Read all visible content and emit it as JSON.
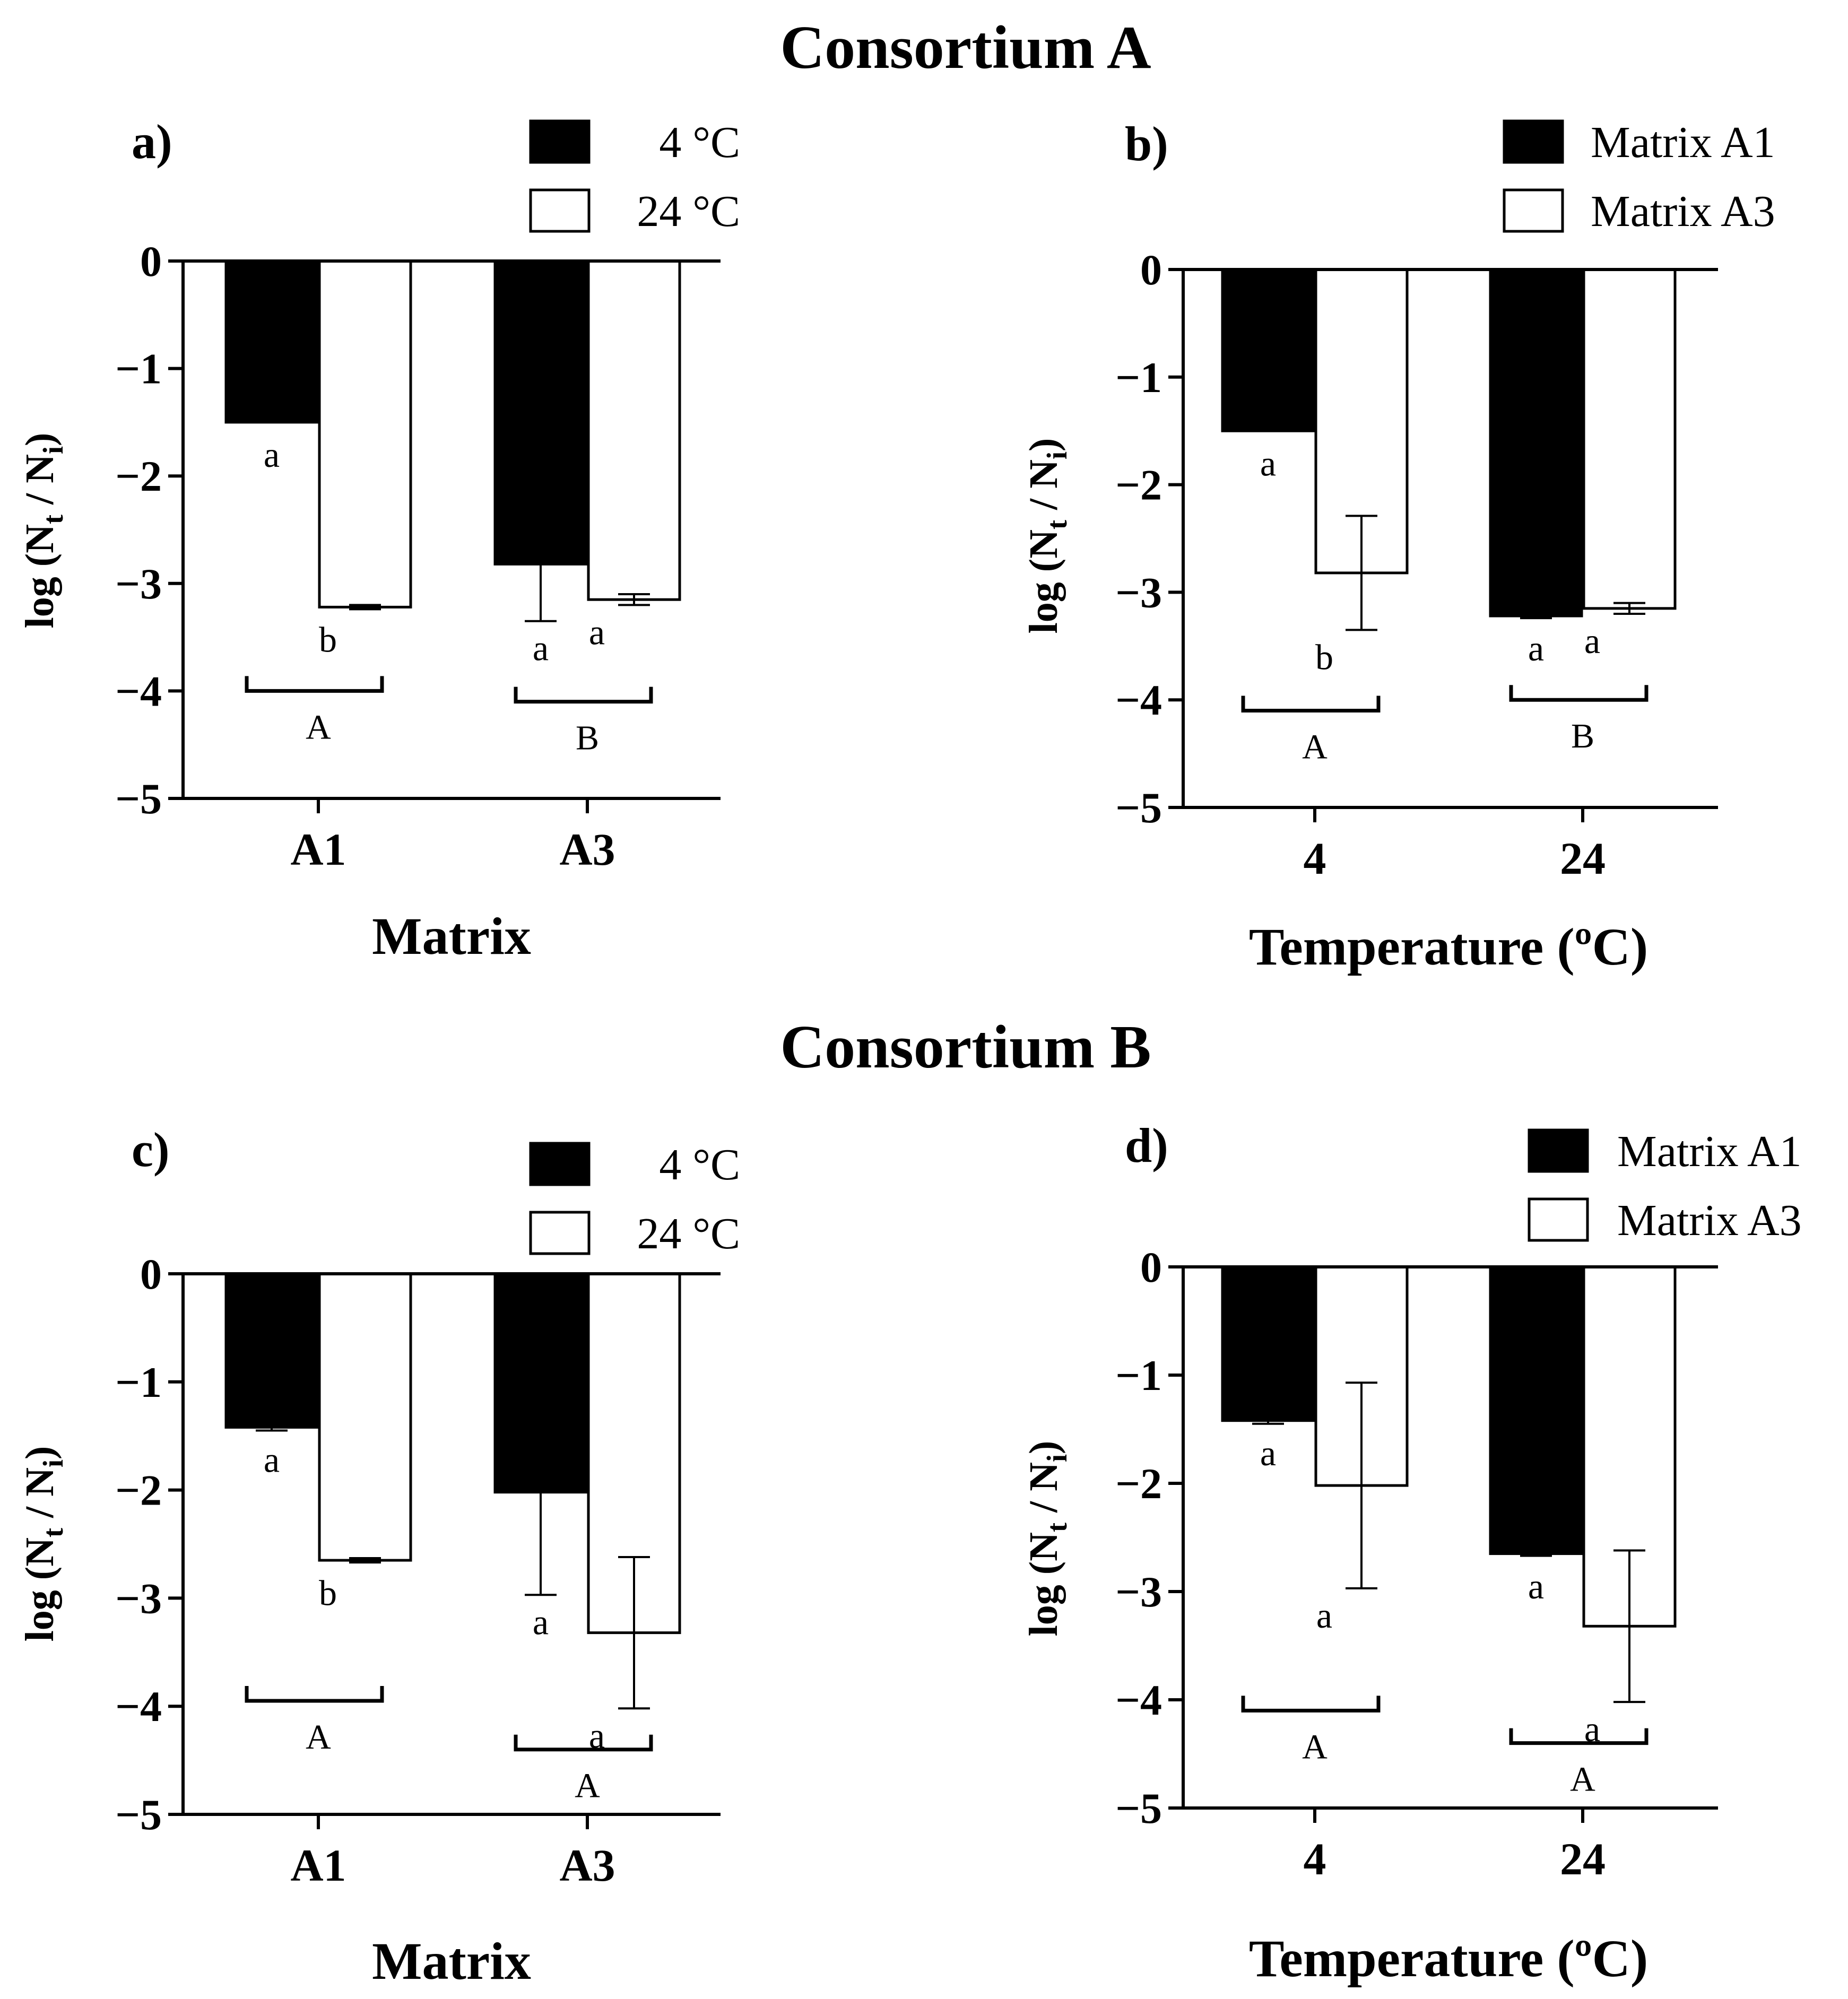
{
  "sections": [
    {
      "title": "Consortium A"
    },
    {
      "title": "Consortium B"
    }
  ],
  "chart_data": [
    {
      "panel": "a)",
      "type": "bar",
      "xlabel": "Matrix",
      "ylabel": "log (N_t / N_i)",
      "ylabel_main_1": "log (N",
      "ylabel_sub_1": "t",
      "ylabel_main_2": " / N",
      "ylabel_sub_2": "i",
      "ylabel_main_3": ")",
      "ylim": [
        -5,
        0
      ],
      "yticks": [
        0,
        -1,
        -2,
        -3,
        -4,
        -5
      ],
      "ytick_labels": [
        "0",
        "−1",
        "−2",
        "−3",
        "−4",
        "−5"
      ],
      "categories": [
        "A1",
        "A3"
      ],
      "series": [
        {
          "name": "4 °C",
          "fill": "#000000",
          "values": [
            -1.5,
            -2.82
          ],
          "errors": [
            0.0,
            0.53
          ],
          "letters": [
            "a",
            "a"
          ]
        },
        {
          "name": "24 °C",
          "fill": "#ffffff",
          "values": [
            -3.22,
            -3.15
          ],
          "errors": [
            0.02,
            0.05
          ],
          "letters": [
            "b",
            "a"
          ]
        }
      ],
      "group_letters": [
        {
          "category": "A1",
          "letter": "A",
          "level": -4.0
        },
        {
          "category": "A3",
          "letter": "B",
          "level": -4.1
        }
      ],
      "legend": {
        "position": "top-right",
        "entries": [
          "4 °C",
          "24 °C"
        ]
      }
    },
    {
      "panel": "b)",
      "type": "bar",
      "xlabel": "Temperature (ºC)",
      "ylabel": "log (N_t / N_i)",
      "ylabel_main_1": "log (N",
      "ylabel_sub_1": "t",
      "ylabel_main_2": " / N",
      "ylabel_sub_2": "i",
      "ylabel_main_3": ")",
      "ylim": [
        -5,
        0
      ],
      "yticks": [
        0,
        -1,
        -2,
        -3,
        -4,
        -5
      ],
      "ytick_labels": [
        "0",
        "−1",
        "−2",
        "−3",
        "−4",
        "−5"
      ],
      "categories": [
        "4",
        "24"
      ],
      "series": [
        {
          "name": "Matrix A1",
          "fill": "#000000",
          "values": [
            -1.5,
            -3.22
          ],
          "errors": [
            0.0,
            0.02
          ],
          "letters": [
            "a",
            "a"
          ]
        },
        {
          "name": "Matrix A3",
          "fill": "#ffffff",
          "values": [
            -2.82,
            -3.15
          ],
          "errors": [
            0.53,
            0.05
          ],
          "letters": [
            "b",
            "a"
          ]
        }
      ],
      "group_letters": [
        {
          "category": "4",
          "letter": "A",
          "level": -4.1
        },
        {
          "category": "24",
          "letter": "B",
          "level": -4.0
        }
      ],
      "legend": {
        "position": "top-right",
        "entries": [
          "Matrix A1",
          "Matrix A3"
        ]
      }
    },
    {
      "panel": "c)",
      "type": "bar",
      "xlabel": "Matrix",
      "ylabel": "log (N_t / N_i)",
      "ylabel_main_1": "log (N",
      "ylabel_sub_1": "t",
      "ylabel_main_2": " / N",
      "ylabel_sub_2": "i",
      "ylabel_main_3": ")",
      "ylim": [
        -5,
        0
      ],
      "yticks": [
        0,
        -1,
        -2,
        -3,
        -4,
        -5
      ],
      "ytick_labels": [
        "0",
        "−1",
        "−2",
        "−3",
        "−4",
        "−5"
      ],
      "categories": [
        "A1",
        "A3"
      ],
      "series": [
        {
          "name": "4 °C",
          "fill": "#000000",
          "values": [
            -1.42,
            -2.02
          ],
          "errors": [
            0.03,
            0.95
          ],
          "letters": [
            "a",
            "a"
          ]
        },
        {
          "name": "24 °C",
          "fill": "#ffffff",
          "values": [
            -2.65,
            -3.32
          ],
          "errors": [
            0.02,
            0.7
          ],
          "letters": [
            "b",
            "a"
          ]
        }
      ],
      "group_letters": [
        {
          "category": "A1",
          "letter": "A",
          "level": -3.95
        },
        {
          "category": "A3",
          "letter": "A",
          "level": -4.4
        }
      ],
      "legend": {
        "position": "top-right",
        "entries": [
          "4 °C",
          "24 °C"
        ]
      }
    },
    {
      "panel": "d)",
      "type": "bar",
      "xlabel": "Temperature (ºC)",
      "ylabel": "log (N_t / N_i)",
      "ylabel_main_1": "log (N",
      "ylabel_sub_1": "t",
      "ylabel_main_2": " / N",
      "ylabel_sub_2": "i",
      "ylabel_main_3": ")",
      "ylim": [
        -5,
        0
      ],
      "yticks": [
        0,
        -1,
        -2,
        -3,
        -4,
        -5
      ],
      "ytick_labels": [
        "0",
        "−1",
        "−2",
        "−3",
        "−4",
        "−5"
      ],
      "categories": [
        "4",
        "24"
      ],
      "series": [
        {
          "name": "Matrix A1",
          "fill": "#000000",
          "values": [
            -1.42,
            -2.65
          ],
          "errors": [
            0.03,
            0.02
          ],
          "letters": [
            "a",
            "a"
          ]
        },
        {
          "name": "Matrix A3",
          "fill": "#ffffff",
          "values": [
            -2.02,
            -3.32
          ],
          "errors": [
            0.95,
            0.7
          ],
          "letters": [
            "a",
            "a"
          ]
        }
      ],
      "group_letters": [
        {
          "category": "4",
          "letter": "A",
          "level": -4.1
        },
        {
          "category": "24",
          "letter": "A",
          "level": -4.4
        }
      ],
      "legend": {
        "position": "top-right",
        "entries": [
          "Matrix A1",
          "Matrix A3"
        ]
      }
    }
  ]
}
